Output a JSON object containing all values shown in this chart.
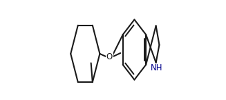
{
  "background_color": "#ffffff",
  "line_color": "#1a1a1a",
  "line_width": 1.5,
  "font_size_o": 8.5,
  "font_size_nh": 8.5,
  "o_color": "#1a1a1a",
  "nh_color": "#00008b",
  "figsize": [
    3.27,
    1.45
  ],
  "dpi": 100
}
